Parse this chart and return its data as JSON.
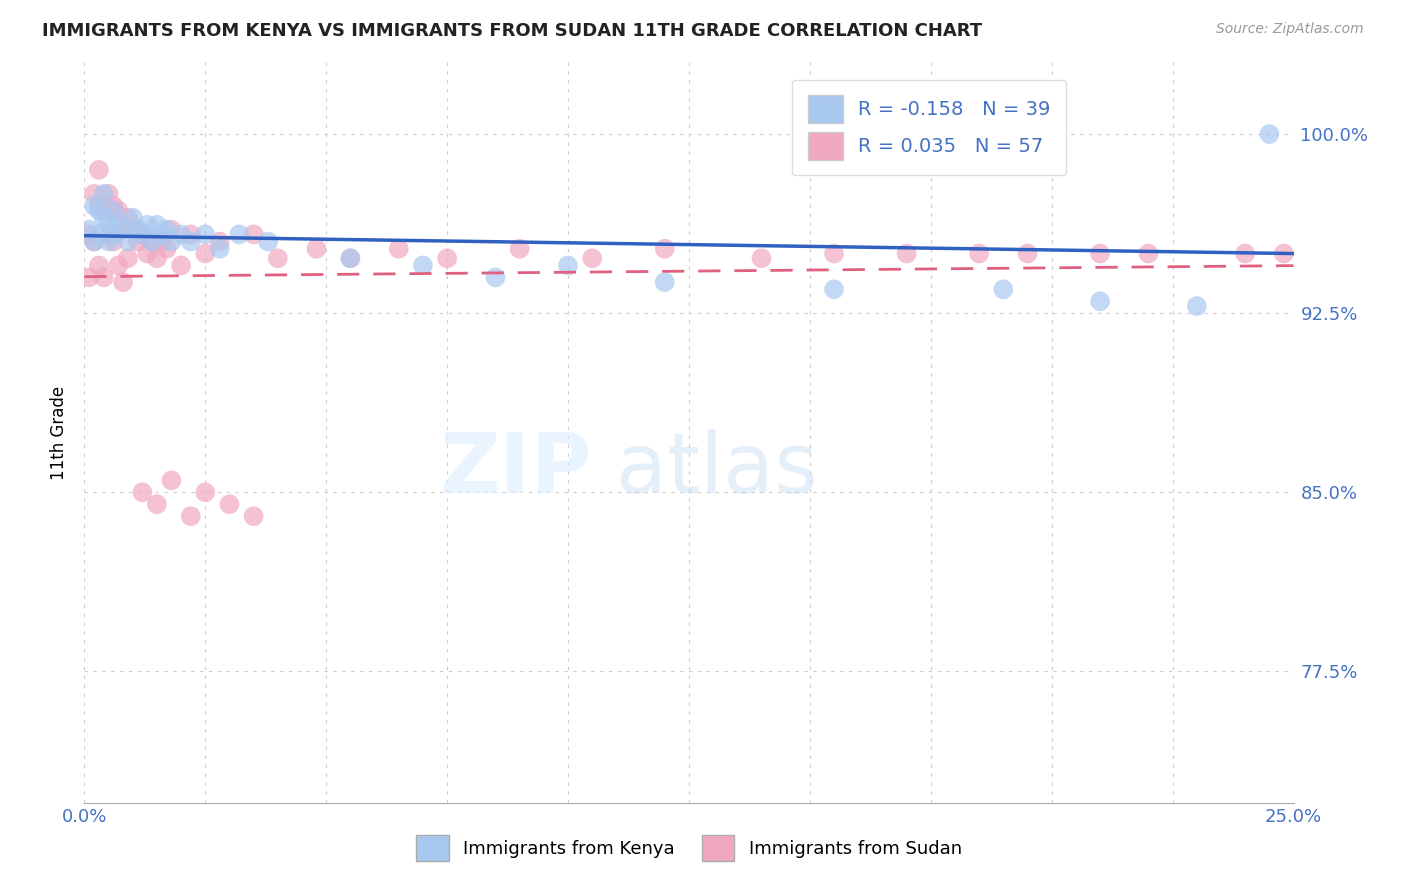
{
  "title": "IMMIGRANTS FROM KENYA VS IMMIGRANTS FROM SUDAN 11TH GRADE CORRELATION CHART",
  "source": "Source: ZipAtlas.com",
  "ylabel": "11th Grade",
  "y_ticks": [
    0.775,
    0.85,
    0.925,
    1.0
  ],
  "y_tick_labels": [
    "77.5%",
    "85.0%",
    "92.5%",
    "100.0%"
  ],
  "x_min": 0.0,
  "x_max": 0.25,
  "y_min": 0.72,
  "y_max": 1.03,
  "legend_kenya": "Immigrants from Kenya",
  "legend_sudan": "Immigrants from Sudan",
  "R_kenya": -0.158,
  "N_kenya": 39,
  "R_sudan": 0.035,
  "N_sudan": 57,
  "kenya_color": "#a8c8f0",
  "sudan_color": "#f0a8c0",
  "kenya_line_color": "#3060c0",
  "sudan_line_color": "#e06080",
  "kenya_scatter_x": [
    0.001,
    0.002,
    0.002,
    0.003,
    0.003,
    0.004,
    0.004,
    0.005,
    0.005,
    0.006,
    0.006,
    0.007,
    0.008,
    0.009,
    0.01,
    0.011,
    0.012,
    0.013,
    0.014,
    0.015,
    0.016,
    0.017,
    0.018,
    0.02,
    0.022,
    0.025,
    0.028,
    0.032,
    0.038,
    0.055,
    0.07,
    0.085,
    0.1,
    0.12,
    0.155,
    0.19,
    0.21,
    0.23,
    0.245
  ],
  "kenya_scatter_y": [
    0.96,
    0.97,
    0.955,
    0.968,
    0.958,
    0.975,
    0.965,
    0.962,
    0.955,
    0.968,
    0.958,
    0.963,
    0.96,
    0.955,
    0.965,
    0.96,
    0.958,
    0.962,
    0.955,
    0.962,
    0.958,
    0.96,
    0.955,
    0.958,
    0.955,
    0.958,
    0.952,
    0.958,
    0.955,
    0.948,
    0.945,
    0.94,
    0.945,
    0.938,
    0.935,
    0.935,
    0.93,
    0.928,
    1.0
  ],
  "sudan_scatter_x": [
    0.001,
    0.001,
    0.002,
    0.002,
    0.003,
    0.003,
    0.003,
    0.004,
    0.004,
    0.005,
    0.005,
    0.006,
    0.006,
    0.007,
    0.007,
    0.008,
    0.008,
    0.009,
    0.009,
    0.01,
    0.011,
    0.012,
    0.013,
    0.014,
    0.015,
    0.016,
    0.017,
    0.018,
    0.02,
    0.022,
    0.025,
    0.028,
    0.035,
    0.04,
    0.048,
    0.055,
    0.065,
    0.075,
    0.09,
    0.105,
    0.12,
    0.14,
    0.155,
    0.17,
    0.185,
    0.195,
    0.21,
    0.22,
    0.24,
    0.248,
    0.012,
    0.015,
    0.018,
    0.022,
    0.025,
    0.03,
    0.035
  ],
  "sudan_scatter_y": [
    0.958,
    0.94,
    0.975,
    0.955,
    0.985,
    0.97,
    0.945,
    0.968,
    0.94,
    0.975,
    0.958,
    0.97,
    0.955,
    0.968,
    0.945,
    0.96,
    0.938,
    0.965,
    0.948,
    0.96,
    0.955,
    0.958,
    0.95,
    0.955,
    0.948,
    0.955,
    0.952,
    0.96,
    0.945,
    0.958,
    0.95,
    0.955,
    0.958,
    0.948,
    0.952,
    0.948,
    0.952,
    0.948,
    0.952,
    0.948,
    0.952,
    0.948,
    0.95,
    0.95,
    0.95,
    0.95,
    0.95,
    0.95,
    0.95,
    0.95,
    0.85,
    0.845,
    0.855,
    0.84,
    0.85,
    0.845,
    0.84
  ]
}
